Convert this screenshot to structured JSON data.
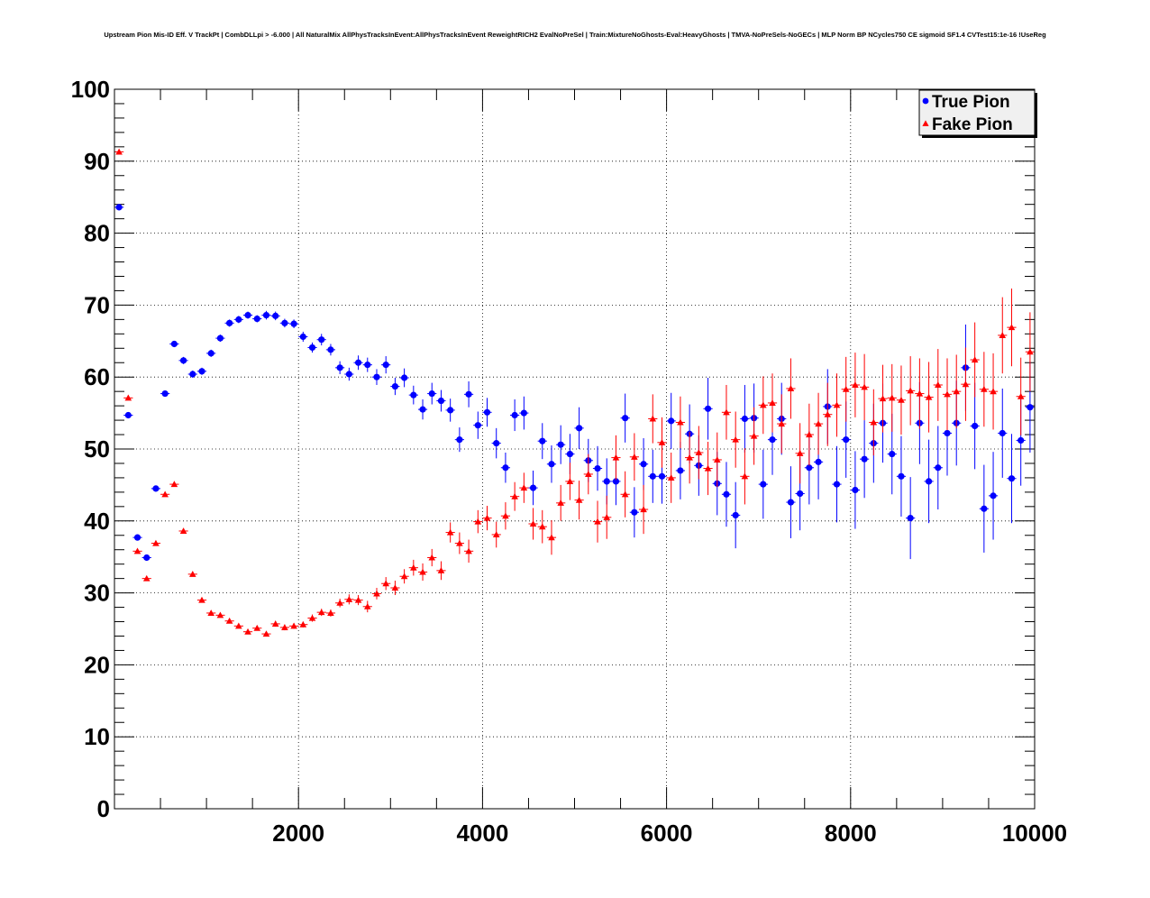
{
  "chart_data": {
    "type": "scatter",
    "title": "Upstream Pion Mis-ID Eff. V TrackPt | CombDLLpi > -6.000 | All NaturalMix AllPhysTracksInEvent:AllPhysTracksInEvent ReweightRICH2 EvalNoPreSel | Train:MixtureNoGhosts-Eval:HeavyGhosts | TMVA-NoPreSels-NoGECs | MLP Norm BP NCycles750 CE sigmoid SF1.4 CVTest15:1e-16 !UseReg",
    "xlabel": "",
    "ylabel": "",
    "xlim": [
      0,
      10000
    ],
    "ylim": [
      0,
      100
    ],
    "x_ticks": [
      2000,
      4000,
      6000,
      8000,
      10000
    ],
    "x_tick_labels": [
      "2000",
      "4000",
      "6000",
      "8000",
      "10000"
    ],
    "y_ticks": [
      0,
      10,
      20,
      30,
      40,
      50,
      60,
      70,
      80,
      90,
      100
    ],
    "y_tick_labels": [
      "0",
      "10",
      "20",
      "30",
      "40",
      "50",
      "60",
      "70",
      "80",
      "90",
      "100"
    ],
    "grid": true,
    "legend_position": "top-right",
    "x": [
      50,
      150,
      250,
      350,
      450,
      550,
      650,
      750,
      850,
      950,
      1050,
      1150,
      1250,
      1350,
      1450,
      1550,
      1650,
      1750,
      1850,
      1950,
      2050,
      2150,
      2250,
      2350,
      2450,
      2550,
      2650,
      2750,
      2850,
      2950,
      3050,
      3150,
      3250,
      3350,
      3450,
      3550,
      3650,
      3750,
      3850,
      3950,
      4050,
      4150,
      4250,
      4350,
      4450,
      4550,
      4650,
      4750,
      4850,
      4950,
      5050,
      5150,
      5250,
      5350,
      5450,
      5550,
      5650,
      5750,
      5850,
      5950,
      6050,
      6150,
      6250,
      6350,
      6450,
      6550,
      6650,
      6750,
      6850,
      6950,
      7050,
      7150,
      7250,
      7350,
      7450,
      7550,
      7650,
      7750,
      7850,
      7950,
      8050,
      8150,
      8250,
      8350,
      8450,
      8550,
      8650,
      8750,
      8850,
      8950,
      9050,
      9150,
      9250,
      9350,
      9450,
      9550,
      9650,
      9750,
      9850,
      9950
    ],
    "series": [
      {
        "name": "True Pion",
        "marker": "circle",
        "color": "#0000ff",
        "values": [
          83.6,
          54.7,
          37.7,
          34.9,
          44.5,
          57.7,
          64.6,
          62.3,
          60.4,
          60.8,
          63.3,
          65.4,
          67.5,
          68.0,
          68.6,
          68.1,
          68.6,
          68.5,
          67.5,
          67.4,
          65.6,
          64.1,
          65.2,
          63.8,
          61.3,
          60.4,
          62.0,
          61.7,
          60.0,
          61.7,
          58.7,
          59.9,
          57.5,
          55.5,
          57.7,
          56.7,
          55.4,
          51.3,
          57.6,
          53.3,
          55.1,
          50.8,
          47.4,
          54.7,
          55.0,
          44.6,
          51.1,
          47.9,
          50.6,
          49.3,
          52.9,
          48.4,
          47.3,
          45.5,
          45.5,
          54.3,
          41.2,
          47.9,
          46.2,
          46.2,
          53.9,
          47.0,
          52.1,
          47.7,
          55.6,
          45.2,
          43.7,
          40.8,
          54.2,
          54.3,
          45.1,
          51.3,
          54.2,
          42.6,
          43.8,
          47.4,
          48.2,
          55.9,
          45.1,
          51.3,
          44.3,
          48.6,
          50.8,
          53.6,
          49.3,
          46.2,
          40.4,
          53.6,
          45.5,
          47.4,
          52.2,
          53.6,
          61.3,
          53.2,
          41.7,
          43.5,
          52.2,
          45.9,
          51.2,
          55.8
        ],
        "errors": [
          0.4,
          0.4,
          0.4,
          0.4,
          0.4,
          0.4,
          0.4,
          0.5,
          0.5,
          0.5,
          0.5,
          0.5,
          0.5,
          0.5,
          0.5,
          0.5,
          0.6,
          0.6,
          0.6,
          0.6,
          0.7,
          0.7,
          0.8,
          0.8,
          0.9,
          0.9,
          1.0,
          1.0,
          1.1,
          1.2,
          1.2,
          1.3,
          1.3,
          1.4,
          1.5,
          1.5,
          1.6,
          1.7,
          1.8,
          1.9,
          2.0,
          2.1,
          2.1,
          2.2,
          2.3,
          2.4,
          2.5,
          2.6,
          2.7,
          2.8,
          2.9,
          3.0,
          3.1,
          3.2,
          3.3,
          3.4,
          3.5,
          3.6,
          3.7,
          3.8,
          3.9,
          4.0,
          4.1,
          4.2,
          4.3,
          4.4,
          4.5,
          4.6,
          4.7,
          4.8,
          4.8,
          4.9,
          5.0,
          5.0,
          5.1,
          5.1,
          5.2,
          5.2,
          5.3,
          5.3,
          5.4,
          5.4,
          5.5,
          5.5,
          5.6,
          5.6,
          5.7,
          5.7,
          5.8,
          5.8,
          5.9,
          5.9,
          6.0,
          6.0,
          6.1,
          6.1,
          6.2,
          6.2,
          6.3,
          6.3
        ]
      },
      {
        "name": "Fake Pion",
        "marker": "triangle",
        "color": "#ff0000",
        "values": [
          91.3,
          57.1,
          35.8,
          32.0,
          36.9,
          43.7,
          45.1,
          38.6,
          32.6,
          29.0,
          27.2,
          26.9,
          26.1,
          25.4,
          24.6,
          25.1,
          24.3,
          25.7,
          25.2,
          25.4,
          25.6,
          26.5,
          27.3,
          27.2,
          28.6,
          29.1,
          29.0,
          28.1,
          29.9,
          31.3,
          30.7,
          32.3,
          33.5,
          32.9,
          34.9,
          33.1,
          38.4,
          36.9,
          35.8,
          39.9,
          40.4,
          38.1,
          40.7,
          43.4,
          44.6,
          39.6,
          39.2,
          37.7,
          42.5,
          45.5,
          42.9,
          46.5,
          39.9,
          40.5,
          48.8,
          43.7,
          48.9,
          41.6,
          54.2,
          50.9,
          46.0,
          53.7,
          48.8,
          49.5,
          47.3,
          48.5,
          55.1,
          51.3,
          46.2,
          51.8,
          56.1,
          56.4,
          53.5,
          58.4,
          49.4,
          52.0,
          53.5,
          54.8,
          56.1,
          58.3,
          58.9,
          58.6,
          53.7,
          57.0,
          57.1,
          56.8,
          58.1,
          57.7,
          57.2,
          58.9,
          57.6,
          58.0,
          59.0,
          62.4,
          58.3,
          58.0,
          65.8,
          66.9,
          57.3,
          63.5
        ],
        "errors": [
          0.3,
          0.3,
          0.3,
          0.3,
          0.3,
          0.3,
          0.3,
          0.3,
          0.3,
          0.3,
          0.3,
          0.3,
          0.3,
          0.3,
          0.3,
          0.3,
          0.3,
          0.4,
          0.4,
          0.4,
          0.4,
          0.5,
          0.5,
          0.5,
          0.6,
          0.7,
          0.7,
          0.8,
          0.8,
          0.9,
          1.0,
          1.0,
          1.1,
          1.2,
          1.2,
          1.3,
          1.4,
          1.5,
          1.6,
          1.6,
          1.7,
          1.8,
          1.9,
          2.0,
          2.1,
          2.2,
          2.3,
          2.4,
          2.5,
          2.6,
          2.7,
          2.8,
          2.9,
          3.0,
          3.1,
          3.2,
          3.3,
          3.4,
          3.4,
          3.5,
          3.5,
          3.6,
          3.6,
          3.7,
          3.7,
          3.8,
          3.8,
          3.9,
          3.9,
          4.0,
          4.0,
          4.1,
          4.1,
          4.2,
          4.2,
          4.3,
          4.3,
          4.4,
          4.4,
          4.5,
          4.5,
          4.6,
          4.6,
          4.7,
          4.7,
          4.8,
          4.8,
          4.9,
          4.9,
          5.0,
          5.0,
          5.1,
          5.1,
          5.2,
          5.2,
          5.3,
          5.3,
          5.4,
          5.4,
          5.5
        ]
      }
    ]
  }
}
